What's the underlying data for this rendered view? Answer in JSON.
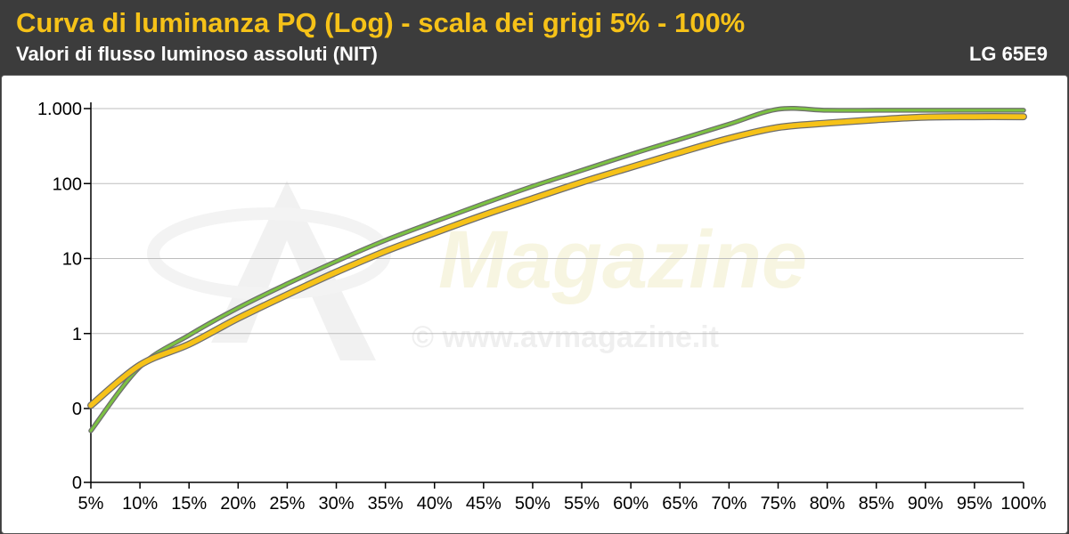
{
  "header": {
    "title": "Curva di luminanza PQ (Log) - scala dei grigi 5% - 100%",
    "subtitle": "Valori di flusso luminoso assoluti (NIT)",
    "model": "LG 65E9"
  },
  "watermark": {
    "brand": "Magazine",
    "url": "© www.avmagazine.it"
  },
  "colors": {
    "header_bg": "#3c3c3c",
    "title": "#f6c218",
    "reference_series": "#7cc242",
    "measured_series": "#f6c218"
  },
  "chart_data": {
    "type": "line",
    "title": "",
    "xlabel": "",
    "ylabel": "",
    "y_scale": "log",
    "grid": true,
    "x": [
      5,
      10,
      15,
      20,
      25,
      30,
      35,
      40,
      45,
      50,
      55,
      60,
      65,
      70,
      75,
      80,
      85,
      90,
      95,
      100
    ],
    "x_tick_labels": [
      "5%",
      "10%",
      "15%",
      "20%",
      "25%",
      "30%",
      "35%",
      "40%",
      "45%",
      "50%",
      "55%",
      "60%",
      "65%",
      "70%",
      "75%",
      "80%",
      "85%",
      "90%",
      "95%",
      "100%"
    ],
    "y_ticks": [
      {
        "value": 0.01,
        "label": "0"
      },
      {
        "value": 0.1,
        "label": "0"
      },
      {
        "value": 1,
        "label": "1"
      },
      {
        "value": 10,
        "label": "10"
      },
      {
        "value": 100,
        "label": "100"
      },
      {
        "value": 1000,
        "label": "1.000"
      }
    ],
    "series": [
      {
        "values": [
          0.05,
          0.36,
          0.95,
          2.2,
          4.6,
          9.2,
          17.5,
          31,
          54,
          92,
          150,
          245,
          390,
          620,
          980,
          950,
          950,
          950,
          950,
          950
        ]
      },
      {
        "values": [
          0.11,
          0.38,
          0.72,
          1.6,
          3.3,
          6.6,
          12.5,
          22,
          38,
          63,
          104,
          165,
          260,
          400,
          560,
          640,
          710,
          770,
          780,
          780
        ]
      }
    ]
  }
}
